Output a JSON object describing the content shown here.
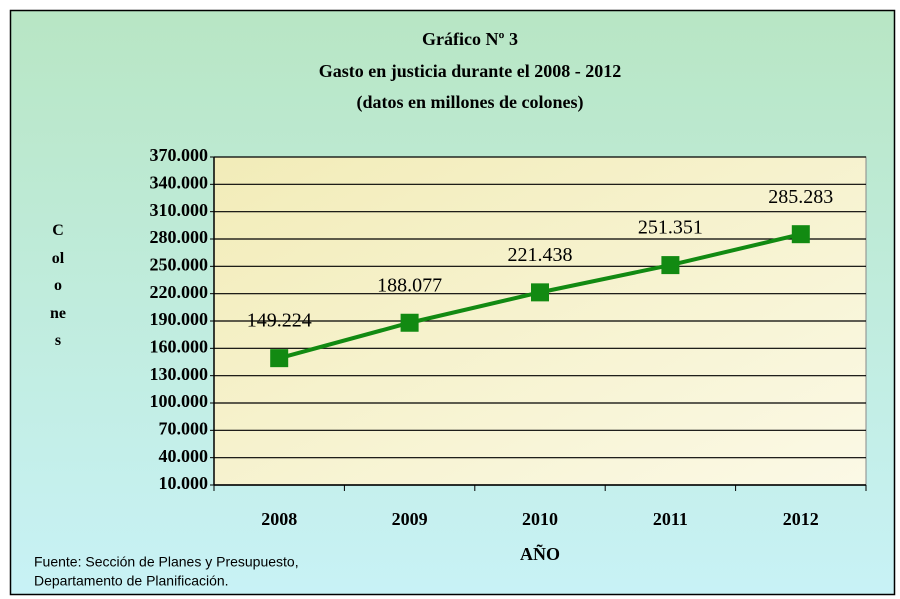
{
  "chart_data": {
    "type": "line",
    "title": "Gráfico Nº 3",
    "subtitle": [
      "Gasto en justicia durante el 2008 - 2012",
      "(datos en millones de colones)"
    ],
    "y_label": "Colones",
    "x_label": "AÑO",
    "source": [
      "Fuente: Sección de Planes y Presupuesto,",
      "Departamento de Planificación."
    ],
    "categories": [
      "2008",
      "2009",
      "2010",
      "2011",
      "2012"
    ],
    "series": [
      {
        "name": "Gasto en justicia",
        "color": "#128a12",
        "values": [
          149224,
          188077,
          221438,
          251351,
          285283
        ],
        "value_labels": [
          "149.224",
          "188.077",
          "221.438",
          "251.351",
          "285.283"
        ]
      }
    ],
    "ylim": [
      10000,
      370000
    ],
    "yticks": [
      {
        "value": 10000,
        "label": "10.000"
      },
      {
        "value": 40000,
        "label": "40.000"
      },
      {
        "value": 70000,
        "label": "70.000"
      },
      {
        "value": 100000,
        "label": "100.000"
      },
      {
        "value": 130000,
        "label": "130.000"
      },
      {
        "value": 160000,
        "label": "160.000"
      },
      {
        "value": 190000,
        "label": "190.000"
      },
      {
        "value": 220000,
        "label": "220.000"
      },
      {
        "value": 250000,
        "label": "250.000"
      },
      {
        "value": 280000,
        "label": "280.000"
      },
      {
        "value": 310000,
        "label": "310.000"
      },
      {
        "value": 340000,
        "label": "340.000"
      },
      {
        "value": 370000,
        "label": "370.000"
      }
    ],
    "grid": true
  }
}
